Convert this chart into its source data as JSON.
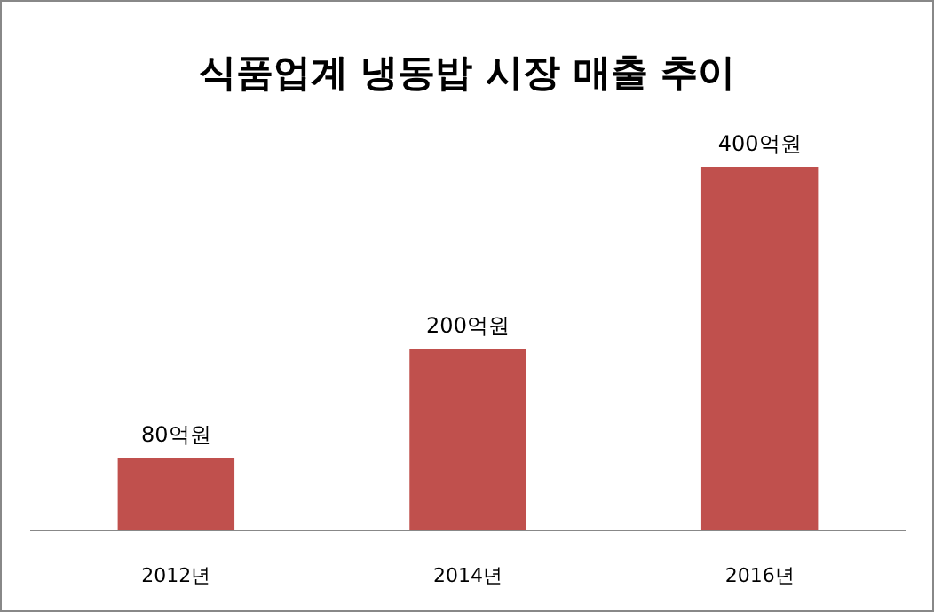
{
  "chart_data": {
    "type": "bar",
    "title": "식품업계 냉동밥 시장 매출 추이",
    "categories": [
      "2012년",
      "2014년",
      "2016년"
    ],
    "values": [
      80,
      200,
      400
    ],
    "value_labels": [
      "80억원",
      "200억원",
      "400억원"
    ],
    "color": "#c0504d"
  }
}
